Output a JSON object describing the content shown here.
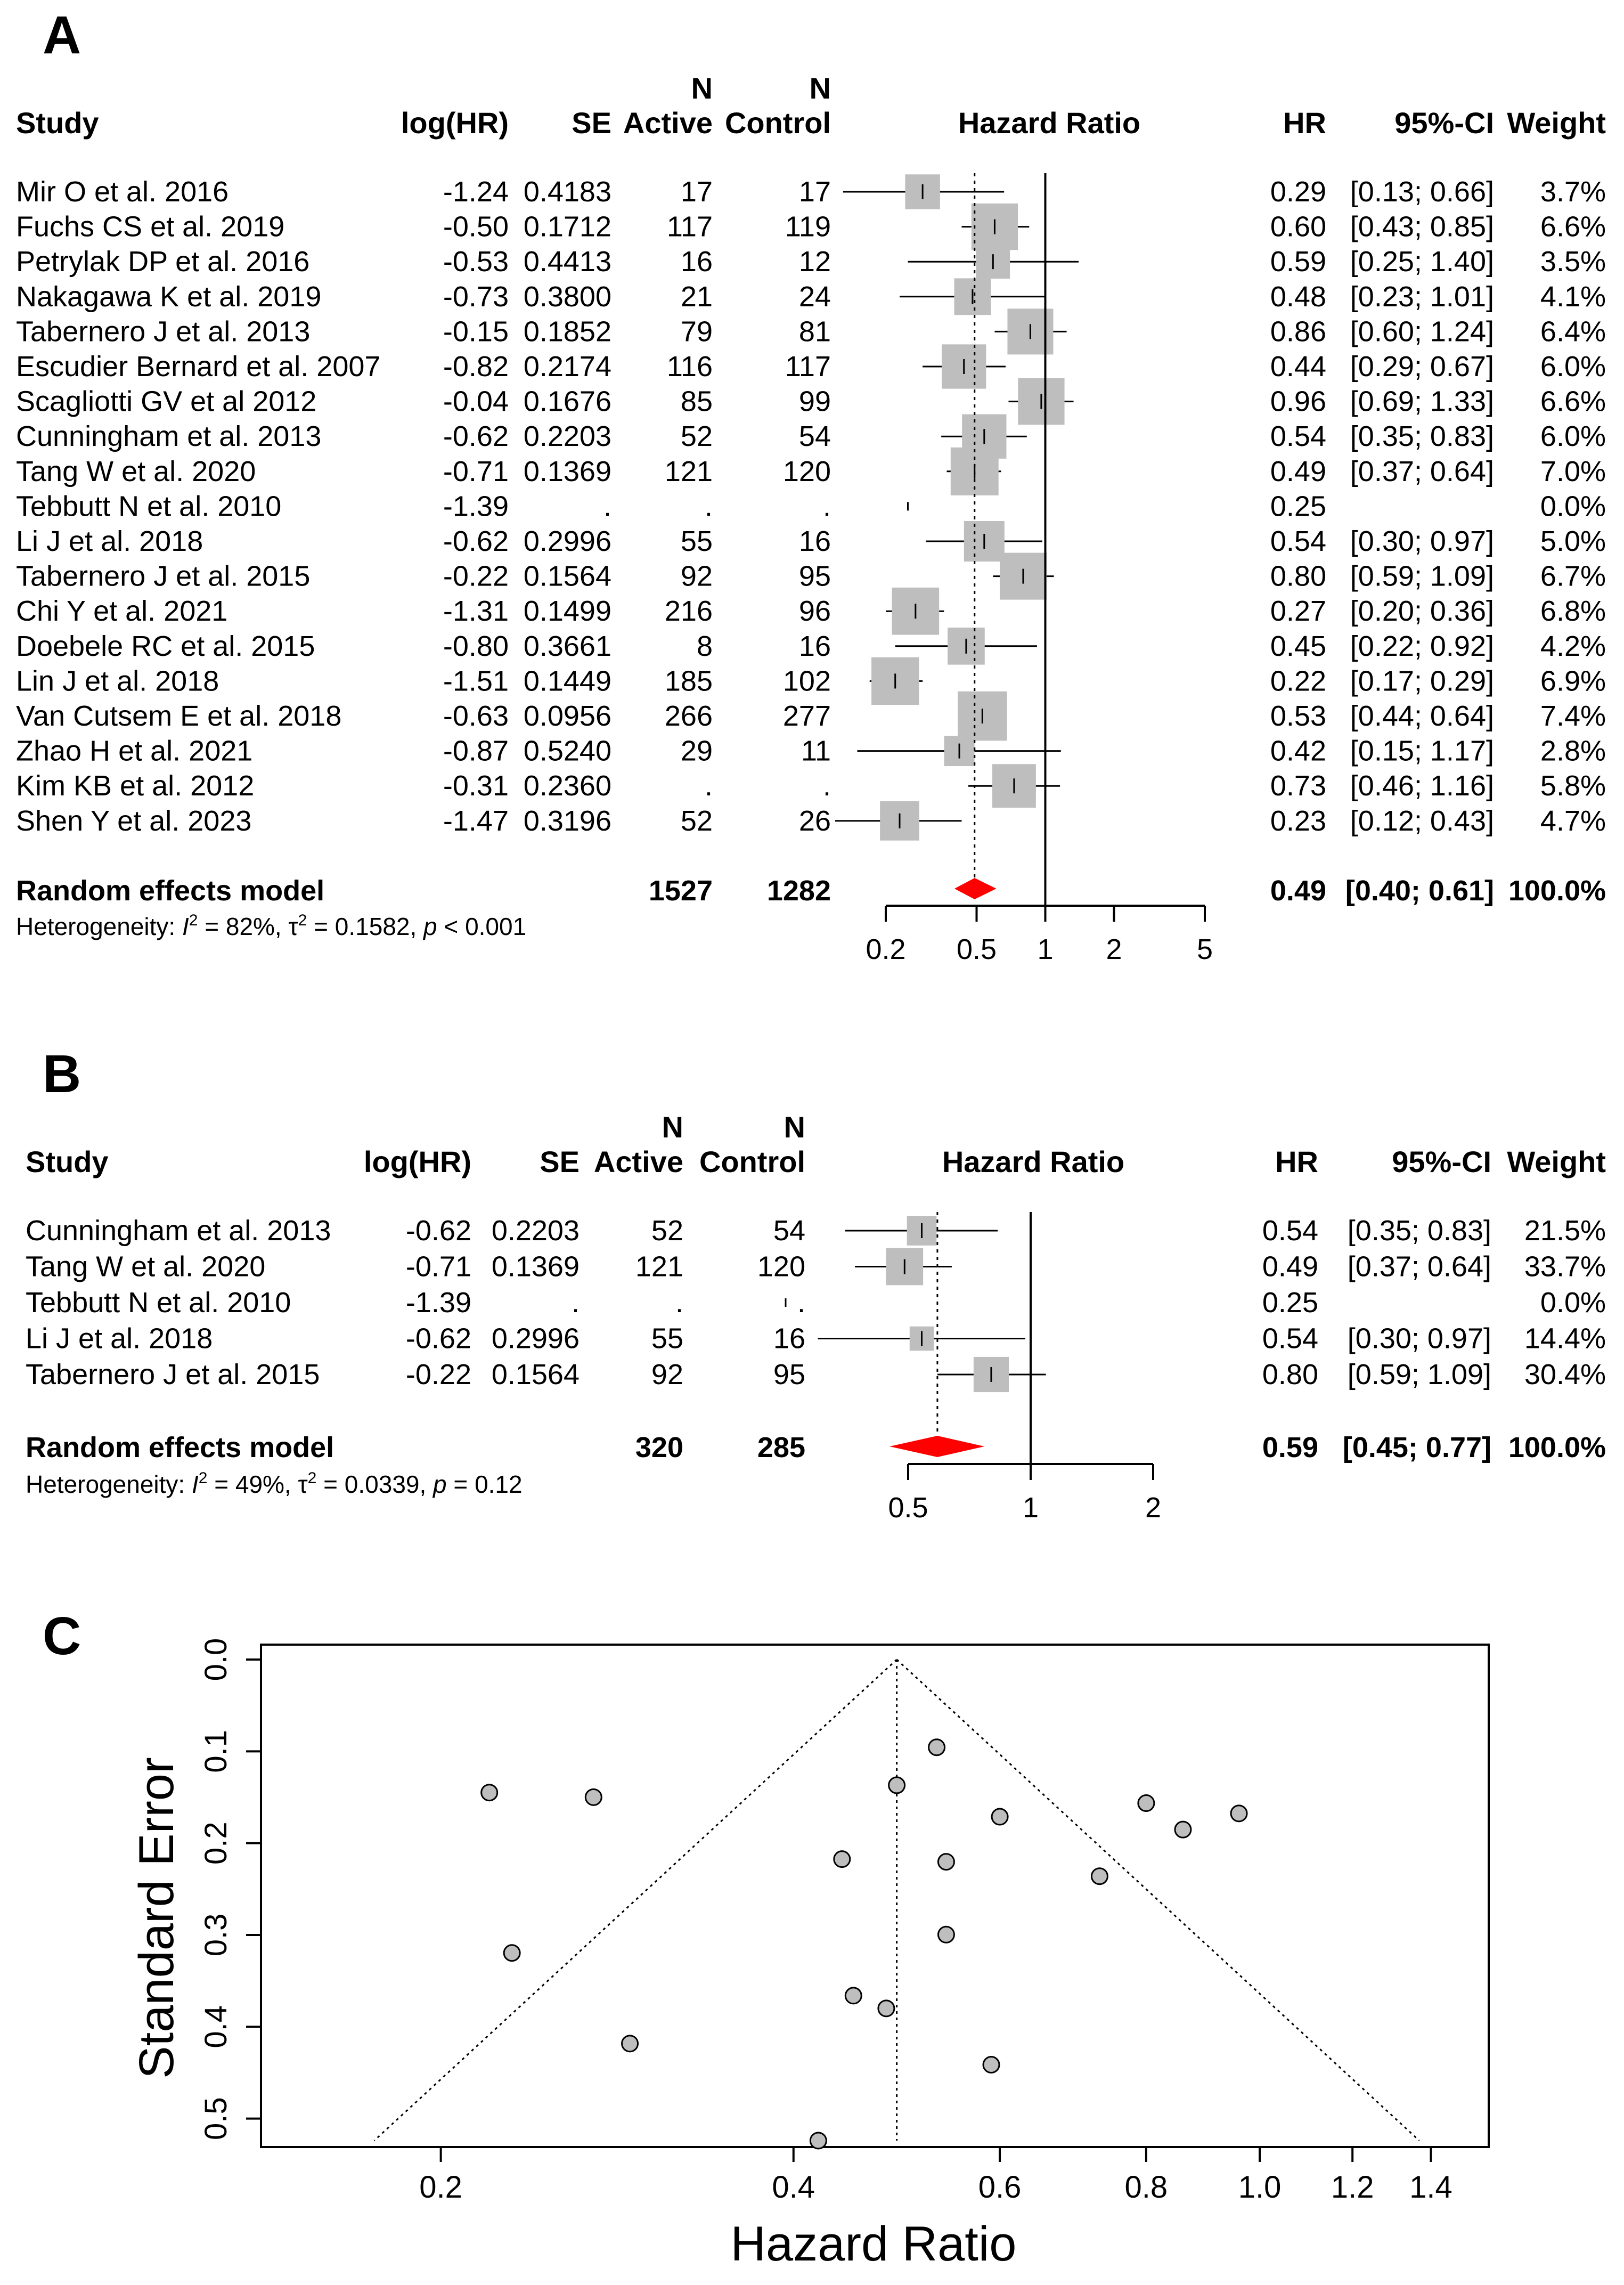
{
  "colors": {
    "box": "#bebebe",
    "diamond": "#ff0000",
    "point_fill": "#bebebe",
    "line": "#000000"
  },
  "chart_data": [
    {
      "type": "forest",
      "panel_label": "A",
      "title": "Hazard Ratio",
      "headers": {
        "study": "Study",
        "loghr": "log(HR)",
        "se": "SE",
        "n": "N",
        "active": "Active",
        "control": "Control",
        "plot": "Hazard Ratio",
        "hr": "HR",
        "ci": "95%-CI",
        "weight": "Weight"
      },
      "studies": [
        {
          "study": "Mir O et al. 2016",
          "loghr": "-1.24",
          "se": "0.4183",
          "active": "17",
          "control": "17",
          "hr": "0.29",
          "ci": "[0.13; 0.66]",
          "weight": "3.7%",
          "hr_val": 0.29,
          "lo": 0.13,
          "hi": 0.66,
          "w": 3.7
        },
        {
          "study": "Fuchs CS et al. 2019",
          "loghr": "-0.50",
          "se": "0.1712",
          "active": "117",
          "control": "119",
          "hr": "0.60",
          "ci": "[0.43; 0.85]",
          "weight": "6.6%",
          "hr_val": 0.6,
          "lo": 0.43,
          "hi": 0.85,
          "w": 6.6
        },
        {
          "study": "Petrylak DP et al. 2016",
          "loghr": "-0.53",
          "se": "0.4413",
          "active": "16",
          "control": "12",
          "hr": "0.59",
          "ci": "[0.25; 1.40]",
          "weight": "3.5%",
          "hr_val": 0.59,
          "lo": 0.25,
          "hi": 1.4,
          "w": 3.5
        },
        {
          "study": "Nakagawa K et al. 2019",
          "loghr": "-0.73",
          "se": "0.3800",
          "active": "21",
          "control": "24",
          "hr": "0.48",
          "ci": "[0.23; 1.01]",
          "weight": "4.1%",
          "hr_val": 0.48,
          "lo": 0.23,
          "hi": 1.01,
          "w": 4.1
        },
        {
          "study": "Tabernero J et al. 2013",
          "loghr": "-0.15",
          "se": "0.1852",
          "active": "79",
          "control": "81",
          "hr": "0.86",
          "ci": "[0.60; 1.24]",
          "weight": "6.4%",
          "hr_val": 0.86,
          "lo": 0.6,
          "hi": 1.24,
          "w": 6.4
        },
        {
          "study": "Escudier Bernard et al. 2007",
          "loghr": "-0.82",
          "se": "0.2174",
          "active": "116",
          "control": "117",
          "hr": "0.44",
          "ci": "[0.29; 0.67]",
          "weight": "6.0%",
          "hr_val": 0.44,
          "lo": 0.29,
          "hi": 0.67,
          "w": 6.0
        },
        {
          "study": "Scagliotti GV et al 2012",
          "loghr": "-0.04",
          "se": "0.1676",
          "active": "85",
          "control": "99",
          "hr": "0.96",
          "ci": "[0.69; 1.33]",
          "weight": "6.6%",
          "hr_val": 0.96,
          "lo": 0.69,
          "hi": 1.33,
          "w": 6.6
        },
        {
          "study": "Cunningham et al. 2013",
          "loghr": "-0.62",
          "se": "0.2203",
          "active": "52",
          "control": "54",
          "hr": "0.54",
          "ci": "[0.35; 0.83]",
          "weight": "6.0%",
          "hr_val": 0.54,
          "lo": 0.35,
          "hi": 0.83,
          "w": 6.0
        },
        {
          "study": "Tang W et al. 2020",
          "loghr": "-0.71",
          "se": "0.1369",
          "active": "121",
          "control": "120",
          "hr": "0.49",
          "ci": "[0.37; 0.64]",
          "weight": "7.0%",
          "hr_val": 0.49,
          "lo": 0.37,
          "hi": 0.64,
          "w": 7.0
        },
        {
          "study": "Tebbutt N et al. 2010",
          "loghr": "-1.39",
          "se": ".",
          "active": ".",
          "control": ".",
          "hr": "0.25",
          "ci": "",
          "weight": "0.0%",
          "hr_val": 0.25,
          "lo": null,
          "hi": null,
          "w": 0.0
        },
        {
          "study": "Li J et al. 2018",
          "loghr": "-0.62",
          "se": "0.2996",
          "active": "55",
          "control": "16",
          "hr": "0.54",
          "ci": "[0.30; 0.97]",
          "weight": "5.0%",
          "hr_val": 0.54,
          "lo": 0.3,
          "hi": 0.97,
          "w": 5.0
        },
        {
          "study": "Tabernero J et al. 2015",
          "loghr": "-0.22",
          "se": "0.1564",
          "active": "92",
          "control": "95",
          "hr": "0.80",
          "ci": "[0.59; 1.09]",
          "weight": "6.7%",
          "hr_val": 0.8,
          "lo": 0.59,
          "hi": 1.09,
          "w": 6.7
        },
        {
          "study": "Chi Y et al. 2021",
          "loghr": "-1.31",
          "se": "0.1499",
          "active": "216",
          "control": "96",
          "hr": "0.27",
          "ci": "[0.20; 0.36]",
          "weight": "6.8%",
          "hr_val": 0.27,
          "lo": 0.2,
          "hi": 0.36,
          "w": 6.8
        },
        {
          "study": "Doebele RC et al. 2015",
          "loghr": "-0.80",
          "se": "0.3661",
          "active": "8",
          "control": "16",
          "hr": "0.45",
          "ci": "[0.22; 0.92]",
          "weight": "4.2%",
          "hr_val": 0.45,
          "lo": 0.22,
          "hi": 0.92,
          "w": 4.2
        },
        {
          "study": "Lin J et al. 2018",
          "loghr": "-1.51",
          "se": "0.1449",
          "active": "185",
          "control": "102",
          "hr": "0.22",
          "ci": "[0.17; 0.29]",
          "weight": "6.9%",
          "hr_val": 0.22,
          "lo": 0.17,
          "hi": 0.29,
          "w": 6.9
        },
        {
          "study": "Van Cutsem E et al. 2018",
          "loghr": "-0.63",
          "se": "0.0956",
          "active": "266",
          "control": "277",
          "hr": "0.53",
          "ci": "[0.44; 0.64]",
          "weight": "7.4%",
          "hr_val": 0.53,
          "lo": 0.44,
          "hi": 0.64,
          "w": 7.4
        },
        {
          "study": "Zhao H et al. 2021",
          "loghr": "-0.87",
          "se": "0.5240",
          "active": "29",
          "control": "11",
          "hr": "0.42",
          "ci": "[0.15; 1.17]",
          "weight": "2.8%",
          "hr_val": 0.42,
          "lo": 0.15,
          "hi": 1.17,
          "w": 2.8
        },
        {
          "study": "Kim KB et al. 2012",
          "loghr": "-0.31",
          "se": "0.2360",
          "active": ".",
          "control": ".",
          "hr": "0.73",
          "ci": "[0.46; 1.16]",
          "weight": "5.8%",
          "hr_val": 0.73,
          "lo": 0.46,
          "hi": 1.16,
          "w": 5.8
        },
        {
          "study": "Shen Y et al. 2023",
          "loghr": "-1.47",
          "se": "0.3196",
          "active": "52",
          "control": "26",
          "hr": "0.23",
          "ci": "[0.12; 0.43]",
          "weight": "4.7%",
          "hr_val": 0.23,
          "lo": 0.12,
          "hi": 0.43,
          "w": 4.7
        }
      ],
      "summary": {
        "label": "Random effects model",
        "active": "1527",
        "control": "1282",
        "hr": "0.49",
        "ci": "[0.40; 0.61]",
        "weight": "100.0%",
        "hr_val": 0.49,
        "lo": 0.4,
        "hi": 0.61
      },
      "heterogeneity": {
        "prefix": "Heterogeneity: ",
        "i2_sym": "I",
        "i2_exp": "2",
        "i2_val": " = 82%, ",
        "tau_sym": "τ",
        "tau_exp": "2",
        "tau_val": " = 0.1582, ",
        "p_sym": "p",
        "p_val": " < 0.001"
      },
      "x_axis": {
        "scale": "log",
        "range": [
          0.2,
          5
        ],
        "ticks": [
          0.2,
          0.5,
          1,
          2,
          5
        ],
        "tick_labels": [
          "0.2",
          "0.5",
          "1",
          "2",
          "5"
        ]
      }
    },
    {
      "type": "forest",
      "panel_label": "B",
      "title": "Hazard Ratio",
      "headers": {
        "study": "Study",
        "loghr": "log(HR)",
        "se": "SE",
        "n": "N",
        "active": "Active",
        "control": "Control",
        "plot": "Hazard Ratio",
        "hr": "HR",
        "ci": "95%-CI",
        "weight": "Weight"
      },
      "studies": [
        {
          "study": "Cunningham et al. 2013",
          "loghr": "-0.62",
          "se": "0.2203",
          "active": "52",
          "control": "54",
          "hr": "0.54",
          "ci": "[0.35; 0.83]",
          "weight": "21.5%",
          "hr_val": 0.54,
          "lo": 0.35,
          "hi": 0.83,
          "w": 21.5
        },
        {
          "study": "Tang W et al. 2020",
          "loghr": "-0.71",
          "se": "0.1369",
          "active": "121",
          "control": "120",
          "hr": "0.49",
          "ci": "[0.37; 0.64]",
          "weight": "33.7%",
          "hr_val": 0.49,
          "lo": 0.37,
          "hi": 0.64,
          "w": 33.7
        },
        {
          "study": "Tebbutt N et al. 2010",
          "loghr": "-1.39",
          "se": ".",
          "active": ".",
          "control": ".",
          "hr": "0.25",
          "ci": "",
          "weight": "0.0%",
          "hr_val": 0.25,
          "lo": null,
          "hi": null,
          "w": 0.0
        },
        {
          "study": "Li J et al. 2018",
          "loghr": "-0.62",
          "se": "0.2996",
          "active": "55",
          "control": "16",
          "hr": "0.54",
          "ci": "[0.30; 0.97]",
          "weight": "14.4%",
          "hr_val": 0.54,
          "lo": 0.3,
          "hi": 0.97,
          "w": 14.4
        },
        {
          "study": "Tabernero J et al. 2015",
          "loghr": "-0.22",
          "se": "0.1564",
          "active": "92",
          "control": "95",
          "hr": "0.80",
          "ci": "[0.59; 1.09]",
          "weight": "30.4%",
          "hr_val": 0.8,
          "lo": 0.59,
          "hi": 1.09,
          "w": 30.4
        }
      ],
      "summary": {
        "label": "Random effects model",
        "active": "320",
        "control": "285",
        "hr": "0.59",
        "ci": "[0.45; 0.77]",
        "weight": "100.0%",
        "hr_val": 0.59,
        "lo": 0.45,
        "hi": 0.77
      },
      "heterogeneity": {
        "prefix": "Heterogeneity: ",
        "i2_sym": "I",
        "i2_exp": "2",
        "i2_val": " = 49%, ",
        "tau_sym": "τ",
        "tau_exp": "2",
        "tau_val": " = 0.0339, ",
        "p_sym": "p",
        "p_val": " = 0.12"
      },
      "x_axis": {
        "scale": "log",
        "range": [
          0.5,
          2
        ],
        "ticks": [
          0.5,
          1,
          2
        ],
        "tick_labels": [
          "0.5",
          "1",
          "2"
        ]
      }
    },
    {
      "type": "scatter",
      "subtype": "funnel",
      "panel_label": "C",
      "xlabel": "Hazard Ratio",
      "ylabel": "Standard Error",
      "x_scale": "log",
      "xlim": [
        0.148,
        1.42
      ],
      "ylim": [
        0,
        0.524
      ],
      "y_reversed": true,
      "x_ticks": [
        0.2,
        0.4,
        0.6,
        0.8,
        1.0,
        1.2,
        1.4
      ],
      "x_tick_labels": [
        "0.2",
        "0.4",
        "0.6",
        "0.8",
        "1.0",
        "1.2",
        "1.4"
      ],
      "y_ticks": [
        0.0,
        0.1,
        0.2,
        0.3,
        0.4,
        0.5
      ],
      "y_tick_labels": [
        "0.0",
        "0.1",
        "0.2",
        "0.3",
        "0.4",
        "0.5"
      ],
      "center": 0.49,
      "points": [
        {
          "x": 0.29,
          "y": 0.4183
        },
        {
          "x": 0.6,
          "y": 0.1712
        },
        {
          "x": 0.59,
          "y": 0.4413
        },
        {
          "x": 0.48,
          "y": 0.38
        },
        {
          "x": 0.86,
          "y": 0.1852
        },
        {
          "x": 0.44,
          "y": 0.2174
        },
        {
          "x": 0.96,
          "y": 0.1676
        },
        {
          "x": 0.54,
          "y": 0.2203
        },
        {
          "x": 0.49,
          "y": 0.1369
        },
        {
          "x": 0.54,
          "y": 0.2996
        },
        {
          "x": 0.8,
          "y": 0.1564
        },
        {
          "x": 0.27,
          "y": 0.1499
        },
        {
          "x": 0.45,
          "y": 0.3661
        },
        {
          "x": 0.22,
          "y": 0.1449
        },
        {
          "x": 0.53,
          "y": 0.0956
        },
        {
          "x": 0.42,
          "y": 0.524
        },
        {
          "x": 0.73,
          "y": 0.236
        },
        {
          "x": 0.23,
          "y": 0.3196
        }
      ]
    }
  ]
}
